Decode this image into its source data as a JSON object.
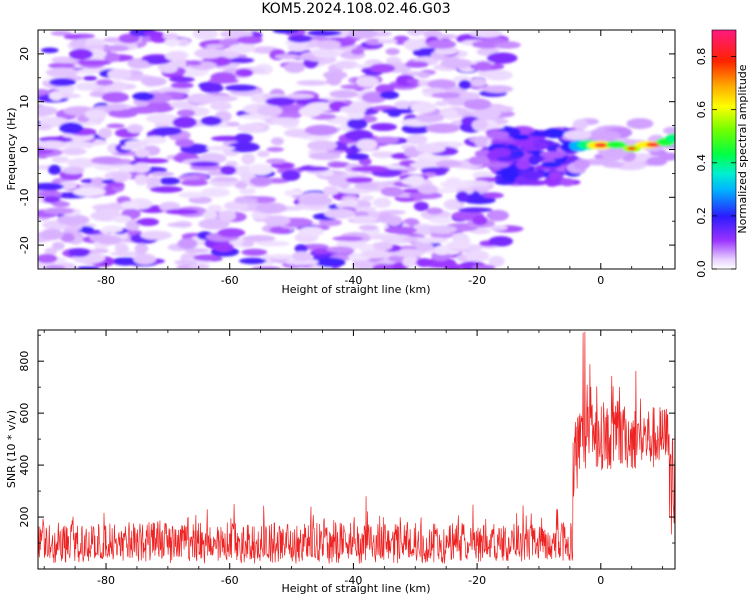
{
  "title": "KOM5.2024.108.02.46.G03",
  "chart_data": [
    {
      "type": "heatmap",
      "xlabel": "Height of straight line (km)",
      "ylabel": "Frequency (Hz)",
      "xlim": [
        -91,
        12
      ],
      "ylim": [
        -25,
        25
      ],
      "x_ticks": [
        -80,
        -60,
        -40,
        -20,
        0
      ],
      "y_ticks": [
        -20,
        -10,
        0,
        10,
        20
      ],
      "grid": false,
      "colorbar": {
        "label": "Normalized spectral amplitude",
        "range": [
          0.0,
          0.9
        ],
        "ticks": [
          0.0,
          0.2,
          0.4,
          0.6,
          0.8
        ],
        "colormap": "white-purple-blue-cyan-green-yellow-orange-red-magenta"
      },
      "description_regions": [
        {
          "x_range": [
            -91,
            -18
          ],
          "freq_range": [
            -25,
            25
          ],
          "amplitude": [
            0.0,
            0.15
          ],
          "pattern": "scattered noise blobs"
        },
        {
          "x_range": [
            -17,
            -4
          ],
          "freq_range": [
            -8,
            5
          ],
          "amplitude": [
            0.1,
            0.25
          ],
          "pattern": "dense blob cluster"
        },
        {
          "x_range": [
            -4,
            12
          ],
          "freq_range": [
            0,
            3
          ],
          "amplitude": [
            0.3,
            0.85
          ],
          "pattern": "narrow band signal near 1 Hz"
        }
      ]
    },
    {
      "type": "line",
      "xlabel": "Height of straight line (km)",
      "ylabel": "SNR (10 * v/v)",
      "xlim": [
        -91,
        12
      ],
      "ylim": [
        0,
        920
      ],
      "x_ticks": [
        -80,
        -60,
        -40,
        -20,
        0
      ],
      "y_ticks": [
        200,
        400,
        600,
        800
      ],
      "grid": false,
      "series_color": "#ee2222",
      "segments": [
        {
          "x_range": [
            -91,
            -4.5
          ],
          "baseline": 100,
          "typical_range": [
            20,
            250
          ],
          "max": 355
        },
        {
          "x_range": [
            -4.5,
            12
          ],
          "baseline": 550,
          "typical_range": [
            350,
            800
          ],
          "max": 920
        }
      ]
    }
  ],
  "colors": {
    "signal": "#ee2222",
    "axis": "#000000",
    "background": "#ffffff"
  }
}
